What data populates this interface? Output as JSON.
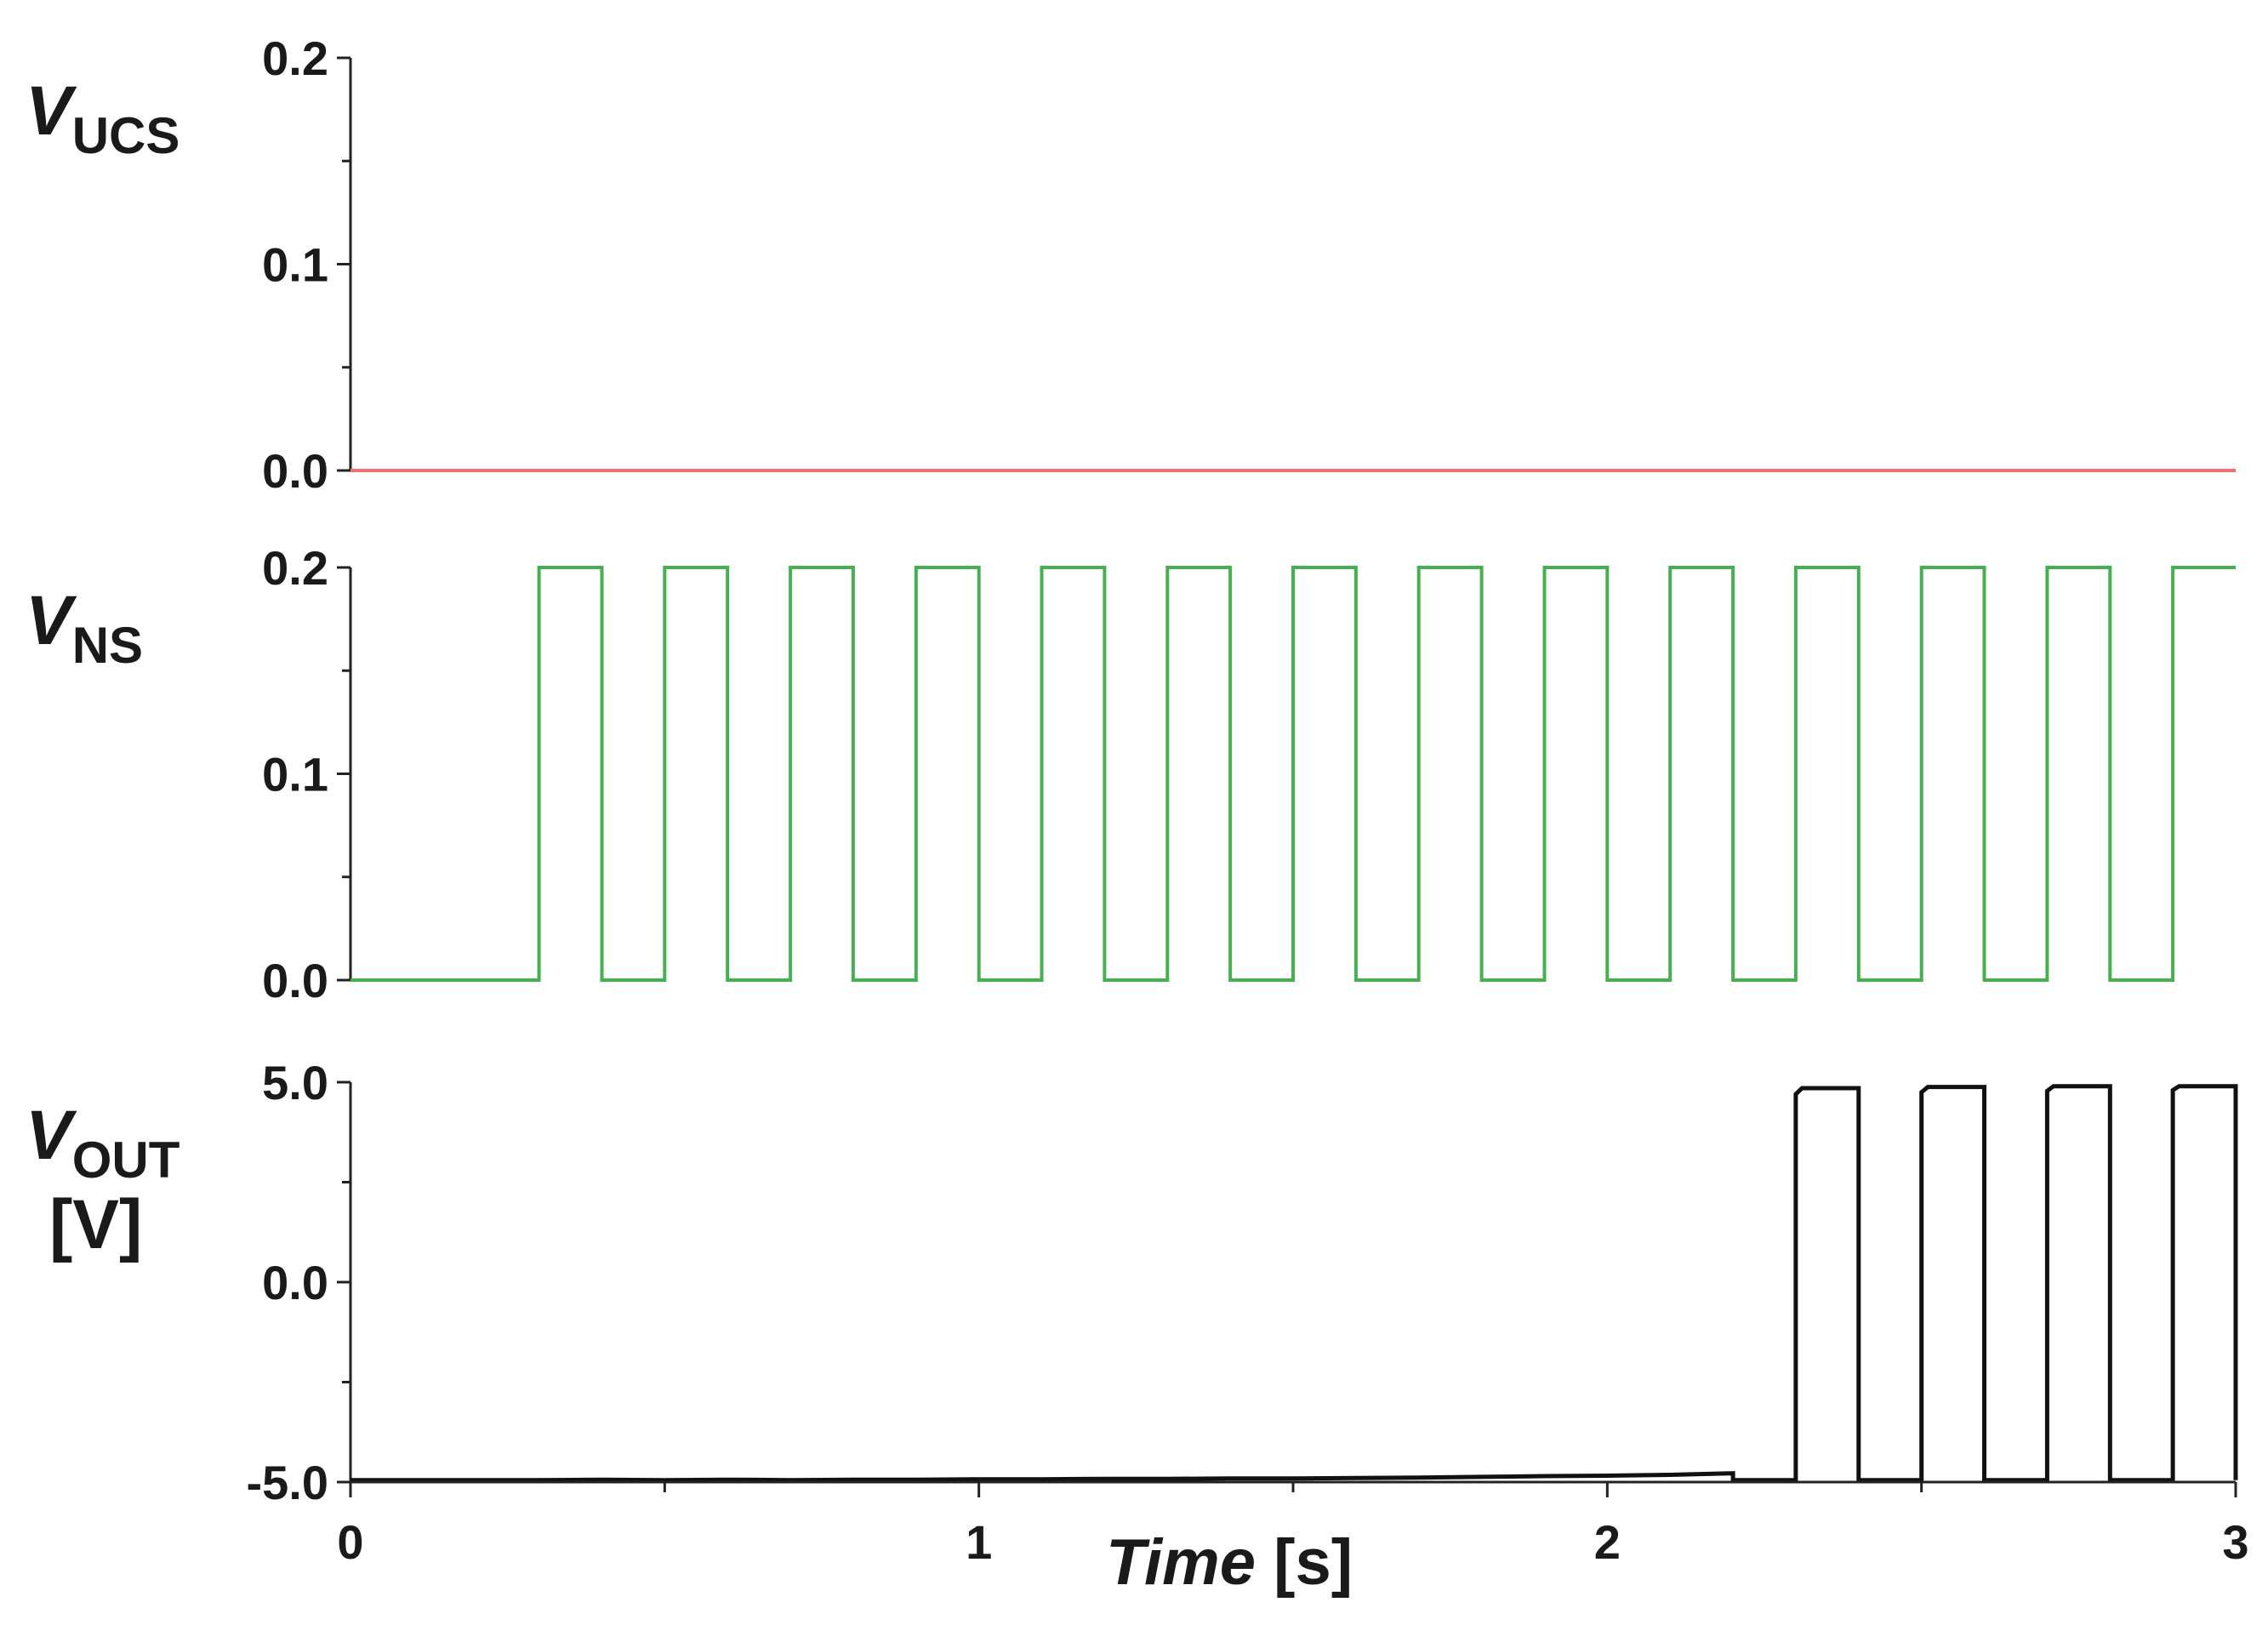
{
  "chart_data": [
    {
      "type": "line",
      "name": "vucs",
      "ylabel_main": "V",
      "ylabel_sub": "UCS",
      "ylabel_unit": "",
      "ylim": [
        0,
        0.2
      ],
      "yticks": [
        0,
        0.1,
        0.2
      ],
      "ytick_labels": [
        "0.0",
        "0.1",
        "0.2"
      ],
      "color": "#f07070",
      "series": [
        {
          "x": [
            0,
            3
          ],
          "y": [
            0,
            0
          ]
        }
      ]
    },
    {
      "type": "line",
      "name": "vns",
      "ylabel_main": "V",
      "ylabel_sub": "NS",
      "ylabel_unit": "",
      "ylim": [
        0,
        0.2
      ],
      "yticks": [
        0,
        0.1,
        0.2
      ],
      "ytick_labels": [
        "0.0",
        "0.1",
        "0.2"
      ],
      "color": "#44b050",
      "series": [
        {
          "x": [
            0,
            0.3,
            0.3,
            0.4,
            0.4,
            0.5,
            0.5,
            0.6,
            0.6,
            0.7,
            0.7,
            0.8,
            0.8,
            0.9,
            0.9,
            1.0,
            1.0,
            1.1,
            1.1,
            1.2,
            1.2,
            1.3,
            1.3,
            1.4,
            1.4,
            1.5,
            1.5,
            1.6,
            1.6,
            1.7,
            1.7,
            1.8,
            1.8,
            1.9,
            1.9,
            2.0,
            2.0,
            2.1,
            2.1,
            2.2,
            2.2,
            2.3,
            2.3,
            2.4,
            2.4,
            2.5,
            2.5,
            2.6,
            2.6,
            2.7,
            2.7,
            2.8,
            2.8,
            2.9,
            2.9,
            3.0
          ],
          "y": [
            0,
            0,
            0.2,
            0.2,
            0,
            0,
            0.2,
            0.2,
            0,
            0,
            0.2,
            0.2,
            0,
            0,
            0.2,
            0.2,
            0,
            0,
            0.2,
            0.2,
            0,
            0,
            0.2,
            0.2,
            0,
            0,
            0.2,
            0.2,
            0,
            0,
            0.2,
            0.2,
            0,
            0,
            0.2,
            0.2,
            0,
            0,
            0.2,
            0.2,
            0,
            0,
            0.2,
            0.2,
            0,
            0,
            0.2,
            0.2,
            0,
            0,
            0.2,
            0.2,
            0,
            0,
            0.2,
            0.2
          ]
        }
      ]
    },
    {
      "type": "line",
      "name": "vout",
      "ylabel_main": "V",
      "ylabel_sub": "OUT",
      "ylabel_unit": "[V]",
      "ylim": [
        -5,
        5
      ],
      "yticks": [
        -5,
        0,
        5
      ],
      "ytick_labels": [
        "-5.0",
        "0.0",
        "5.0"
      ],
      "color": "#111111",
      "series": [
        {
          "x": [
            0,
            0.3,
            0.4,
            0.5,
            0.6,
            0.7,
            0.8,
            0.9,
            1.0,
            1.1,
            1.2,
            1.3,
            1.4,
            1.5,
            1.6,
            1.7,
            1.8,
            1.9,
            2.0,
            2.1,
            2.2,
            2.2,
            2.3,
            2.3,
            2.31,
            2.4,
            2.4,
            2.5,
            2.5,
            2.51,
            2.6,
            2.6,
            2.7,
            2.7,
            2.71,
            2.8,
            2.8,
            2.9,
            2.9,
            2.91,
            3.0,
            3.0
          ],
          "y": [
            -4.95,
            -4.95,
            -4.94,
            -4.95,
            -4.94,
            -4.95,
            -4.94,
            -4.94,
            -4.93,
            -4.93,
            -4.92,
            -4.92,
            -4.91,
            -4.91,
            -4.9,
            -4.89,
            -4.87,
            -4.85,
            -4.84,
            -4.82,
            -4.78,
            -4.95,
            -4.95,
            4.7,
            4.85,
            4.85,
            -4.95,
            -4.95,
            4.75,
            4.88,
            4.88,
            -4.95,
            -4.95,
            4.78,
            4.9,
            4.9,
            -4.95,
            -4.95,
            4.8,
            4.9,
            4.9,
            -4.95
          ]
        }
      ]
    }
  ],
  "xaxis": {
    "xlim": [
      0,
      3
    ],
    "ticks": [
      0,
      1,
      2,
      3
    ],
    "tick_labels": [
      "0",
      "1",
      "2",
      "3"
    ],
    "minor_ticks": [
      0.5,
      1.5,
      2.5
    ],
    "label_main": "Time",
    "label_unit": " [s]"
  }
}
